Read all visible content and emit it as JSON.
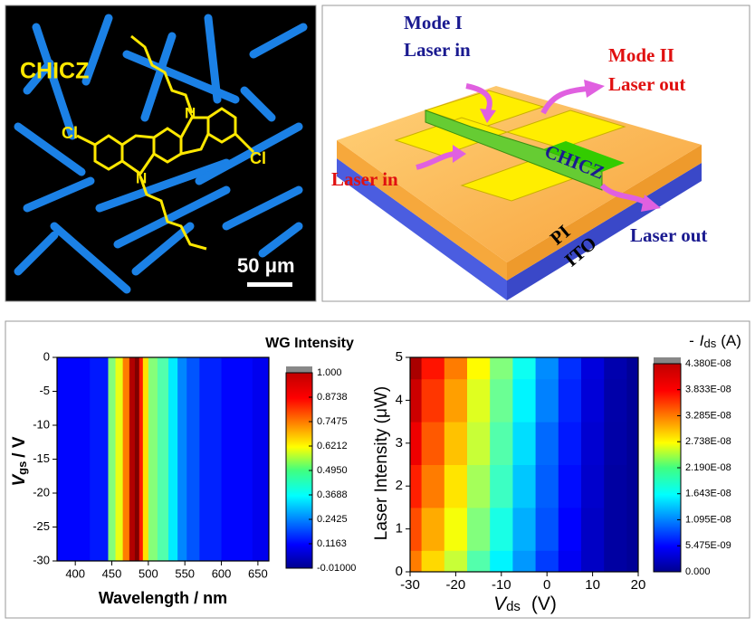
{
  "micrograph": {
    "label": "CHICZ",
    "atoms": [
      "Cl",
      "Cl",
      "N",
      "N"
    ],
    "scale_bar": "50 μm"
  },
  "device": {
    "mode1": "Mode I",
    "laser_in_top": "Laser in",
    "mode2": "Mode II",
    "laser_out_top": "Laser out",
    "laser_in_left": "Laser in",
    "material": "CHICZ",
    "layer_pi": "PI",
    "layer_ito": "ITO",
    "laser_out_bottom": "Laser out"
  },
  "chart_data": [
    {
      "type": "heatmap",
      "title": "WG Intensity",
      "xlabel": "Wavelength / nm",
      "ylabel": {
        "main": "V",
        "sub": "gs",
        "rest": "/ V"
      },
      "xlim": [
        375,
        665
      ],
      "xticks": [
        400,
        450,
        500,
        550,
        600,
        650
      ],
      "ylim": [
        -30,
        0
      ],
      "yticks": [
        0,
        -5,
        -10,
        -15,
        -20,
        -25,
        -30
      ],
      "x": [
        375,
        400,
        440,
        450,
        460,
        470,
        478,
        485,
        490,
        495,
        505,
        520,
        535,
        545,
        560,
        580,
        620,
        665
      ],
      "values": [
        0.12,
        0.12,
        0.14,
        0.5,
        0.6,
        0.75,
        0.95,
        1.0,
        0.85,
        0.65,
        0.5,
        0.45,
        0.35,
        0.25,
        0.2,
        0.15,
        0.12,
        0.1
      ],
      "clim": [
        -0.01,
        1.0
      ],
      "cticks": [
        {
          "value": 1,
          "label": "1.000"
        },
        0.8738,
        0.7475,
        0.6212,
        {
          "value": 0.495,
          "label": "0.4950"
        },
        0.3688,
        0.2425,
        0.1163,
        {
          "value": -0.01,
          "label": "-0.01000"
        }
      ]
    },
    {
      "type": "heatmap2d",
      "title": {
        "prefix": "-",
        "main": "I",
        "sub": "ds",
        "rest": "(A)"
      },
      "xlabel": {
        "main": "V",
        "sub": "ds",
        "rest": "(V)"
      },
      "ylabel": "Laser Intensity (μW)",
      "xlim": [
        -30,
        20
      ],
      "xticks": [
        -30,
        -20,
        -10,
        0,
        10,
        20
      ],
      "ylim": [
        0,
        5
      ],
      "yticks": [
        0,
        1,
        2,
        3,
        4,
        5
      ],
      "x": [
        -30,
        -25,
        -20,
        -15,
        -10,
        -5,
        0,
        5,
        10,
        15,
        20
      ],
      "y": [
        0,
        1,
        2,
        3,
        4,
        5
      ],
      "z": [
        [
          3.3e-08,
          2.9e-08,
          2.5e-08,
          2e-08,
          1.6e-08,
          1.2e-08,
          8e-09,
          5e-09,
          3e-09,
          1.5e-09,
          1e-09
        ],
        [
          3.5e-08,
          3.1e-08,
          2.7e-08,
          2.2e-08,
          1.75e-08,
          1.3e-08,
          9e-09,
          5.5e-09,
          3e-09,
          1.5e-09,
          1e-09
        ],
        [
          3.7e-08,
          3.3e-08,
          2.85e-08,
          2.35e-08,
          1.9e-08,
          1.4e-08,
          9.5e-09,
          6e-09,
          3.3e-09,
          1.5e-09,
          1e-09
        ],
        [
          3.9e-08,
          3.45e-08,
          3e-08,
          2.5e-08,
          2e-08,
          1.5e-08,
          1e-08,
          6.5e-09,
          3.5e-09,
          1.7e-09,
          1e-09
        ],
        [
          4.05e-08,
          3.6e-08,
          3.15e-08,
          2.6e-08,
          2.1e-08,
          1.6e-08,
          1.1e-08,
          7e-09,
          3.8e-09,
          1.8e-09,
          1e-09
        ],
        [
          4.2e-08,
          3.75e-08,
          3.3e-08,
          2.75e-08,
          2.2e-08,
          1.7e-08,
          1.15e-08,
          7.5e-09,
          4e-09,
          2e-09,
          1e-09
        ]
      ],
      "clim": [
        0,
        4.38e-08
      ],
      "cticks": [
        {
          "value": 4.38e-08,
          "label": "4.380E-08"
        },
        {
          "value": 3.833e-08,
          "label": "3.833E-08"
        },
        {
          "value": 3.285e-08,
          "label": "3.285E-08"
        },
        {
          "value": 2.738e-08,
          "label": "2.738E-08"
        },
        {
          "value": 2.19e-08,
          "label": "2.190E-08"
        },
        {
          "value": 1.643e-08,
          "label": "1.643E-08"
        },
        {
          "value": 1.095e-08,
          "label": "1.095E-08"
        },
        {
          "value": 5.475e-09,
          "label": "5.475E-09"
        },
        {
          "value": 0,
          "label": "0.000"
        }
      ]
    }
  ]
}
